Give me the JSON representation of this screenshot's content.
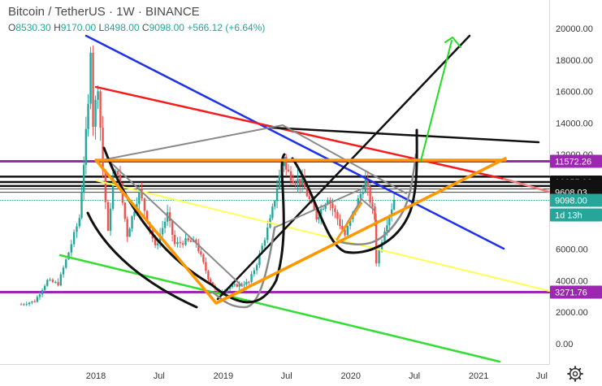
{
  "header": {
    "symbol": "Bitcoin",
    "pair": "TetherUS",
    "interval": "1W",
    "exchange": "BINANCE",
    "open_label": "O",
    "open": "8530.30",
    "high_label": "H",
    "high": "9170.00",
    "low_label": "L",
    "low": "8498.00",
    "close_label": "C",
    "close": "9098.00",
    "change": "+566.12 (+6.64%)"
  },
  "colors": {
    "up": "#26a69a",
    "down": "#ef5350",
    "last_price": "#26a69a",
    "purple": "#9c27b0",
    "orange": "#ff9800",
    "blue": "#1e32e8",
    "red": "#f41c1c",
    "yellow": "#ffff55",
    "green_line": "#33dd33",
    "arrow": "#22dd22",
    "gray": "#8a8a8a",
    "black": "#111111"
  },
  "chart_data": {
    "type": "candlestick",
    "title": "",
    "y_ticks": [
      0,
      2000,
      4000,
      6000,
      8000,
      10000,
      12000,
      14000,
      16000,
      18000,
      20000
    ],
    "y_tick_labels": [
      "0.00",
      "2000.00",
      "4000.00",
      "6000.00",
      "8000.00",
      "10000.00",
      "12000.00",
      "14000.00",
      "16000.00",
      "18000.00",
      "20000.00"
    ],
    "x_tick_labels": [
      "2018",
      "Jul",
      "2019",
      "Jul",
      "2020",
      "Jul",
      "2021",
      "Jul"
    ],
    "price_labels": [
      {
        "text": "11572.26",
        "value": 11572.26,
        "style": "purple"
      },
      {
        "text": "10255.92",
        "value": 10255.92,
        "style": "dark"
      },
      {
        "text": "10004.94",
        "value": 10004.94,
        "style": "dark"
      },
      {
        "text": "9821.67",
        "value": 9821.67,
        "style": "dark"
      },
      {
        "text": "9608.03",
        "value": 9608.03,
        "style": "dark"
      },
      {
        "text": "9098.00",
        "value": 9098,
        "style": "green"
      },
      {
        "text": "1d 13h",
        "value": 9098,
        "style": "green-sub"
      },
      {
        "text": "3271.76",
        "value": 3271.76,
        "style": "purple"
      }
    ],
    "horizontal_levels": [
      {
        "value": 11572.26,
        "color": "purple"
      },
      {
        "value": 3271.76,
        "color": "purple"
      },
      {
        "value": 10600,
        "color": "black"
      },
      {
        "value": 10255.92,
        "color": "black"
      },
      {
        "value": 10004.94,
        "color": "black"
      },
      {
        "value": 9821.67,
        "color": "dark"
      },
      {
        "value": 9608.03,
        "color": "dark"
      }
    ],
    "weekly_close_path": [
      [
        "2017-06-01",
        2500
      ],
      [
        "2017-07-10",
        2700
      ],
      [
        "2017-08-15",
        4000
      ],
      [
        "2017-09-15",
        3800
      ],
      [
        "2017-10-15",
        5800
      ],
      [
        "2017-11-15",
        8000
      ],
      [
        "2017-12-10",
        15000
      ],
      [
        "2017-12-17",
        19000
      ],
      [
        "2017-12-24",
        14000
      ],
      [
        "2018-01-07",
        16500
      ],
      [
        "2018-01-21",
        11000
      ],
      [
        "2018-02-05",
        7000
      ],
      [
        "2018-02-19",
        10500
      ],
      [
        "2018-03-05",
        11000
      ],
      [
        "2018-04-01",
        6900
      ],
      [
        "2018-05-05",
        9700
      ],
      [
        "2018-06-20",
        6100
      ],
      [
        "2018-07-25",
        8200
      ],
      [
        "2018-08-15",
        6300
      ],
      [
        "2018-09-15",
        6500
      ],
      [
        "2018-10-15",
        6400
      ],
      [
        "2018-11-19",
        4200
      ],
      [
        "2018-12-15",
        3200
      ],
      [
        "2019-01-20",
        3600
      ],
      [
        "2019-03-15",
        3900
      ],
      [
        "2019-04-07",
        5100
      ],
      [
        "2019-05-15",
        7800
      ],
      [
        "2019-06-24",
        12000
      ],
      [
        "2019-06-30",
        11000
      ],
      [
        "2019-07-20",
        10500
      ],
      [
        "2019-08-15",
        10200
      ],
      [
        "2019-09-25",
        8000
      ],
      [
        "2019-10-27",
        9300
      ],
      [
        "2019-12-15",
        6900
      ],
      [
        "2020-01-15",
        8700
      ],
      [
        "2020-02-12",
        10300
      ],
      [
        "2020-03-10",
        7900
      ],
      [
        "2020-03-14",
        5200
      ],
      [
        "2020-04-07",
        7300
      ],
      [
        "2020-05-04",
        9098
      ]
    ],
    "last_close": 9098
  }
}
